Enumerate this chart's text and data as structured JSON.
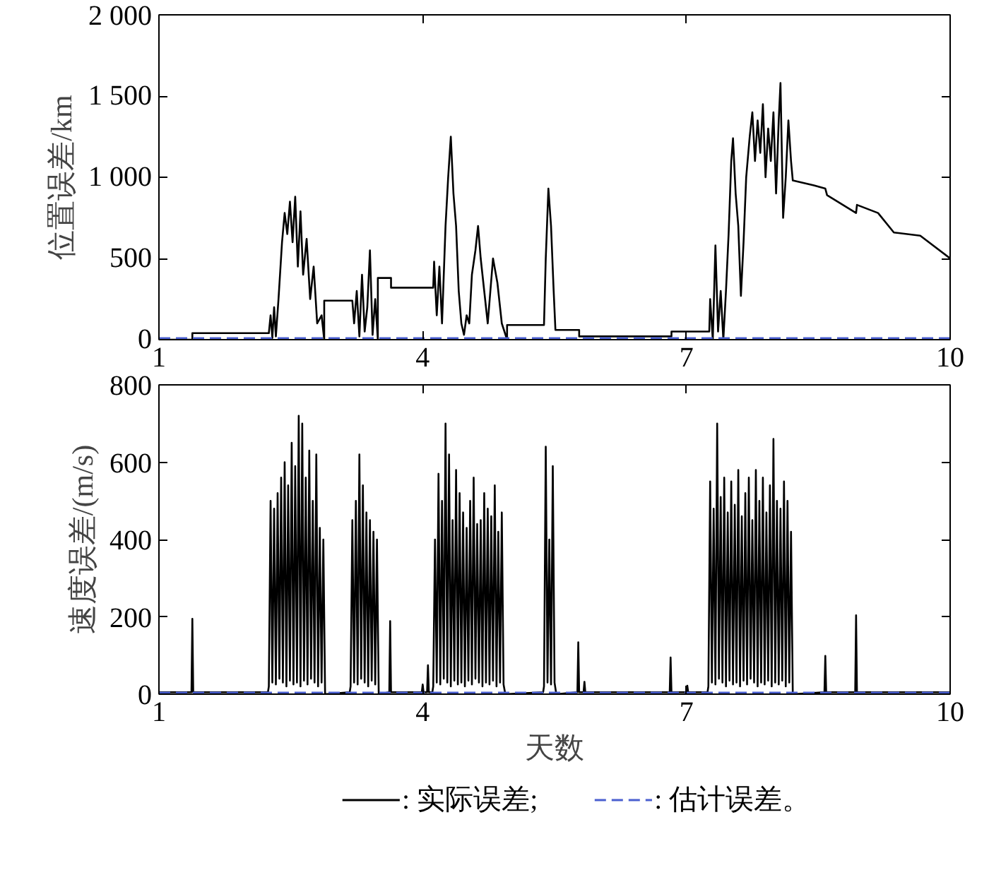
{
  "chart_data": [
    {
      "type": "line",
      "ylabel": "位置误差/km",
      "xlim": [
        1,
        10
      ],
      "xticks": [
        1,
        4,
        7,
        10
      ],
      "ylim": [
        0,
        2000
      ],
      "yticks": [
        0,
        500,
        {
          "value": 1000,
          "label": "1 000"
        },
        {
          "value": 1500,
          "label": "1 500"
        },
        {
          "value": 2000,
          "label": "2 000"
        }
      ],
      "grid": false,
      "series": [
        {
          "color": "#000000",
          "line_style": "solid",
          "x": [
            1,
            1.38,
            1.38,
            2.25,
            2.27,
            2.29,
            2.31,
            2.33,
            2.36,
            2.4,
            2.43,
            2.46,
            2.49,
            2.52,
            2.55,
            2.58,
            2.61,
            2.64,
            2.68,
            2.72,
            2.76,
            2.8,
            2.85,
            2.88,
            2.88,
            3.2,
            3.22,
            3.25,
            3.28,
            3.31,
            3.34,
            3.37,
            3.4,
            3.43,
            3.46,
            3.49,
            3.49,
            3.64,
            3.64,
            4.12,
            4.13,
            4.16,
            4.19,
            4.22,
            4.26,
            4.29,
            4.32,
            4.35,
            4.38,
            4.41,
            4.44,
            4.47,
            4.5,
            4.53,
            4.56,
            4.6,
            4.63,
            4.66,
            4.7,
            4.74,
            4.8,
            4.85,
            4.9,
            4.96,
            4.96,
            5.38,
            5.4,
            5.43,
            5.46,
            5.49,
            5.51,
            5.78,
            5.78,
            6.83,
            6.83,
            7.26,
            7.27,
            7.3,
            7.33,
            7.36,
            7.39,
            7.42,
            7.45,
            7.48,
            7.51,
            7.53,
            7.56,
            7.59,
            7.62,
            7.65,
            7.68,
            7.72,
            7.75,
            7.78,
            7.81,
            7.84,
            7.87,
            7.9,
            7.93,
            7.96,
            7.99,
            8.02,
            8.05,
            8.07,
            8.1,
            8.13,
            8.16,
            8.19,
            8.21,
            8.45,
            8.58,
            8.6,
            8.93,
            8.94,
            9.18,
            9.36,
            9.66,
            10
          ],
          "values": [
            0,
            0,
            40,
            40,
            150,
            10,
            200,
            20,
            250,
            600,
            780,
            650,
            850,
            600,
            880,
            450,
            790,
            400,
            620,
            250,
            450,
            100,
            150,
            0,
            240,
            240,
            100,
            300,
            20,
            400,
            50,
            200,
            550,
            30,
            250,
            0,
            380,
            380,
            320,
            320,
            480,
            150,
            450,
            100,
            700,
            1000,
            1250,
            900,
            700,
            300,
            100,
            30,
            150,
            100,
            400,
            550,
            700,
            500,
            300,
            100,
            500,
            350,
            100,
            0,
            90,
            90,
            500,
            930,
            700,
            300,
            60,
            60,
            20,
            20,
            50,
            50,
            250,
            0,
            580,
            50,
            300,
            0,
            300,
            650,
            1100,
            1240,
            900,
            700,
            270,
            600,
            1000,
            1250,
            1400,
            1100,
            1350,
            1150,
            1450,
            1000,
            1300,
            1100,
            1400,
            900,
            1350,
            1580,
            750,
            1000,
            1350,
            1100,
            980,
            950,
            930,
            890,
            780,
            830,
            780,
            660,
            640,
            500
          ]
        },
        {
          "color": "#4a5fd0",
          "line_style": "dashed",
          "x": [
            1,
            10
          ],
          "values": [
            10,
            10
          ]
        }
      ]
    },
    {
      "type": "line",
      "ylabel": "速度误差/(m/s)",
      "xlabel": "天数",
      "xlim": [
        1,
        10
      ],
      "xticks": [
        1,
        4,
        7,
        10
      ],
      "ylim": [
        0,
        800
      ],
      "yticks": [
        0,
        200,
        400,
        600,
        800
      ],
      "grid": false,
      "legend": "bottom",
      "series": [
        {
          "name": ": 实际误差;",
          "color": "#000000",
          "line_style": "solid",
          "x": [
            1,
            1.37,
            1.38,
            1.39,
            2.24,
            2.25,
            2.27,
            2.29,
            2.31,
            2.33,
            2.35,
            2.37,
            2.39,
            2.41,
            2.43,
            2.45,
            2.47,
            2.49,
            2.51,
            2.53,
            2.55,
            2.57,
            2.59,
            2.61,
            2.63,
            2.65,
            2.67,
            2.69,
            2.71,
            2.73,
            2.75,
            2.77,
            2.79,
            2.81,
            2.83,
            2.85,
            2.87,
            2.89,
            3.17,
            3.18,
            3.2,
            3.22,
            3.24,
            3.26,
            3.28,
            3.3,
            3.32,
            3.34,
            3.36,
            3.38,
            3.4,
            3.42,
            3.44,
            3.46,
            3.48,
            3.5,
            3.62,
            3.63,
            3.64,
            3.99,
            4.0,
            4.01,
            4.05,
            4.06,
            4.07,
            4.11,
            4.12,
            4.14,
            4.16,
            4.18,
            4.2,
            4.22,
            4.24,
            4.26,
            4.28,
            4.3,
            4.32,
            4.34,
            4.36,
            4.38,
            4.4,
            4.42,
            4.44,
            4.46,
            4.48,
            4.5,
            4.52,
            4.54,
            4.56,
            4.58,
            4.6,
            4.62,
            4.64,
            4.66,
            4.68,
            4.7,
            4.72,
            4.74,
            4.76,
            4.78,
            4.8,
            4.82,
            4.84,
            4.86,
            4.88,
            4.9,
            4.92,
            4.94,
            5.37,
            5.38,
            5.4,
            5.42,
            5.44,
            5.46,
            5.48,
            5.5,
            5.52,
            5.76,
            5.77,
            5.78,
            5.83,
            5.84,
            5.85,
            6.81,
            6.82,
            6.83,
            7.0,
            7.01,
            7.02,
            7.24,
            7.25,
            7.27,
            7.29,
            7.31,
            7.33,
            7.35,
            7.37,
            7.39,
            7.41,
            7.43,
            7.45,
            7.47,
            7.49,
            7.51,
            7.53,
            7.55,
            7.57,
            7.59,
            7.61,
            7.63,
            7.65,
            7.67,
            7.69,
            7.71,
            7.73,
            7.75,
            7.77,
            7.79,
            7.81,
            7.83,
            7.85,
            7.87,
            7.89,
            7.91,
            7.93,
            7.95,
            7.97,
            7.99,
            8.01,
            8.03,
            8.05,
            8.07,
            8.09,
            8.11,
            8.13,
            8.15,
            8.17,
            8.19,
            8.21,
            8.57,
            8.58,
            8.59,
            8.92,
            8.93,
            8.94,
            10
          ],
          "values": [
            5,
            5,
            195,
            5,
            5,
            20,
            500,
            30,
            480,
            25,
            520,
            40,
            560,
            30,
            600,
            20,
            540,
            35,
            650,
            25,
            590,
            30,
            720,
            20,
            700,
            35,
            560,
            25,
            630,
            40,
            500,
            30,
            620,
            20,
            430,
            30,
            400,
            0,
            5,
            20,
            450,
            30,
            500,
            25,
            620,
            40,
            540,
            30,
            470,
            20,
            450,
            35,
            420,
            25,
            400,
            0,
            5,
            189,
            5,
            5,
            25,
            5,
            5,
            75,
            5,
            5,
            20,
            400,
            30,
            570,
            25,
            500,
            40,
            700,
            30,
            620,
            20,
            450,
            35,
            580,
            25,
            520,
            30,
            470,
            20,
            430,
            35,
            500,
            25,
            560,
            40,
            440,
            30,
            450,
            20,
            520,
            30,
            480,
            25,
            460,
            35,
            540,
            20,
            420,
            30,
            470,
            25,
            0,
            5,
            20,
            640,
            30,
            400,
            25,
            590,
            30,
            0,
            5,
            134,
            5,
            5,
            32,
            5,
            5,
            95,
            5,
            5,
            22,
            5,
            5,
            20,
            550,
            30,
            480,
            25,
            700,
            40,
            510,
            30,
            560,
            20,
            470,
            35,
            550,
            25,
            490,
            30,
            580,
            20,
            460,
            35,
            520,
            25,
            560,
            40,
            450,
            30,
            580,
            20,
            500,
            30,
            560,
            25,
            470,
            35,
            540,
            20,
            660,
            30,
            500,
            25,
            480,
            35,
            550,
            20,
            500,
            30,
            420,
            0,
            5,
            99,
            5,
            5,
            204,
            5,
            5
          ]
        },
        {
          "name": ": 估计误差。",
          "color": "#4a5fd0",
          "line_style": "dashed",
          "x": [
            1,
            10
          ],
          "values": [
            4,
            4
          ]
        }
      ]
    }
  ]
}
